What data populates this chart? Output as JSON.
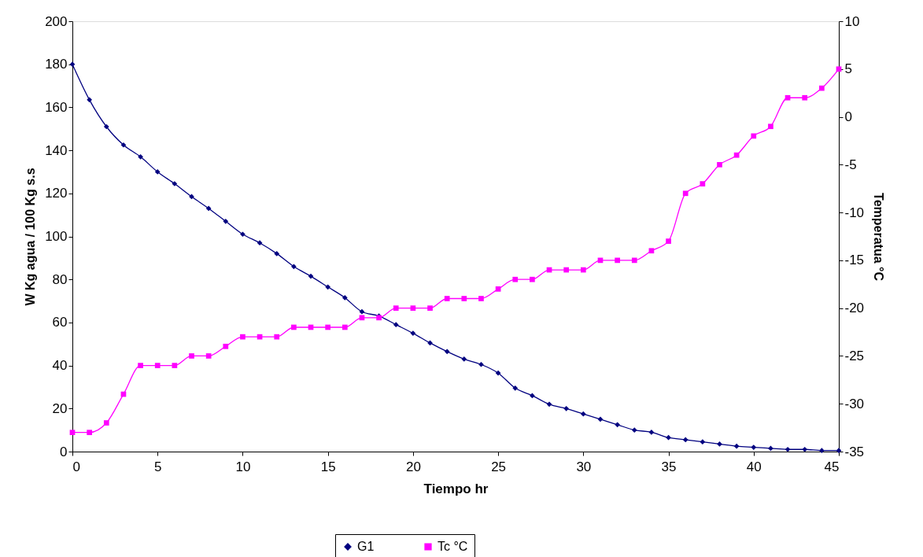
{
  "chart_data": {
    "type": "line",
    "xlabel": "Tiempo hr",
    "ylabel": "W Kg agua / 100 Kg s.s",
    "y2label": "Temperatua °C",
    "x": [
      0,
      1,
      2,
      3,
      4,
      5,
      6,
      7,
      8,
      9,
      10,
      11,
      12,
      13,
      14,
      15,
      16,
      17,
      18,
      19,
      20,
      21,
      22,
      23,
      24,
      25,
      26,
      27,
      28,
      29,
      30,
      31,
      32,
      33,
      34,
      35,
      36,
      37,
      38,
      39,
      40,
      41,
      42,
      43,
      44,
      45
    ],
    "series": [
      {
        "name": "G1",
        "color": "#000080",
        "marker": "diamond",
        "values": [
          180,
          163.5,
          151,
          142.5,
          137,
          130,
          124.5,
          118.5,
          113,
          107,
          101,
          97,
          92,
          86,
          81.5,
          76.5,
          71.5,
          65,
          63,
          59,
          55,
          50.5,
          46.5,
          43,
          40.5,
          36.5,
          29.5,
          26,
          22,
          20,
          17.5,
          15,
          12.5,
          10,
          9,
          6.5,
          5.5,
          4.5,
          3.5,
          2.5,
          2,
          1.5,
          1,
          1,
          0.5,
          0.5
        ]
      },
      {
        "name": "Tc °C",
        "color": "#ff00ff",
        "marker": "square",
        "axis": "y2",
        "values": [
          -33,
          -33,
          -32,
          -29,
          -26,
          -26,
          -26,
          -25,
          -25,
          -24,
          -23,
          -23,
          -23,
          -22,
          -22,
          -22,
          -22,
          -21,
          -21,
          -20,
          -20,
          -20,
          -19,
          -19,
          -19,
          -18,
          -17,
          -17,
          -16,
          -16,
          -16,
          -15,
          -15,
          -15,
          -14,
          -13,
          -8,
          -7,
          -5,
          -4,
          -2,
          -1,
          2,
          2,
          3,
          5
        ]
      }
    ],
    "xlim": [
      0,
      45
    ],
    "xticks": [
      0,
      5,
      10,
      15,
      20,
      25,
      30,
      35,
      40,
      45
    ],
    "ylim": [
      0,
      200
    ],
    "yticks": [
      0,
      20,
      40,
      60,
      80,
      100,
      120,
      140,
      160,
      180,
      200
    ],
    "y2lim": [
      -35,
      10
    ],
    "y2ticks": [
      -35,
      -30,
      -25,
      -20,
      -15,
      -10,
      -5,
      0,
      5,
      10
    ],
    "grid": false,
    "legend": "bottom",
    "line_style": "solid"
  }
}
